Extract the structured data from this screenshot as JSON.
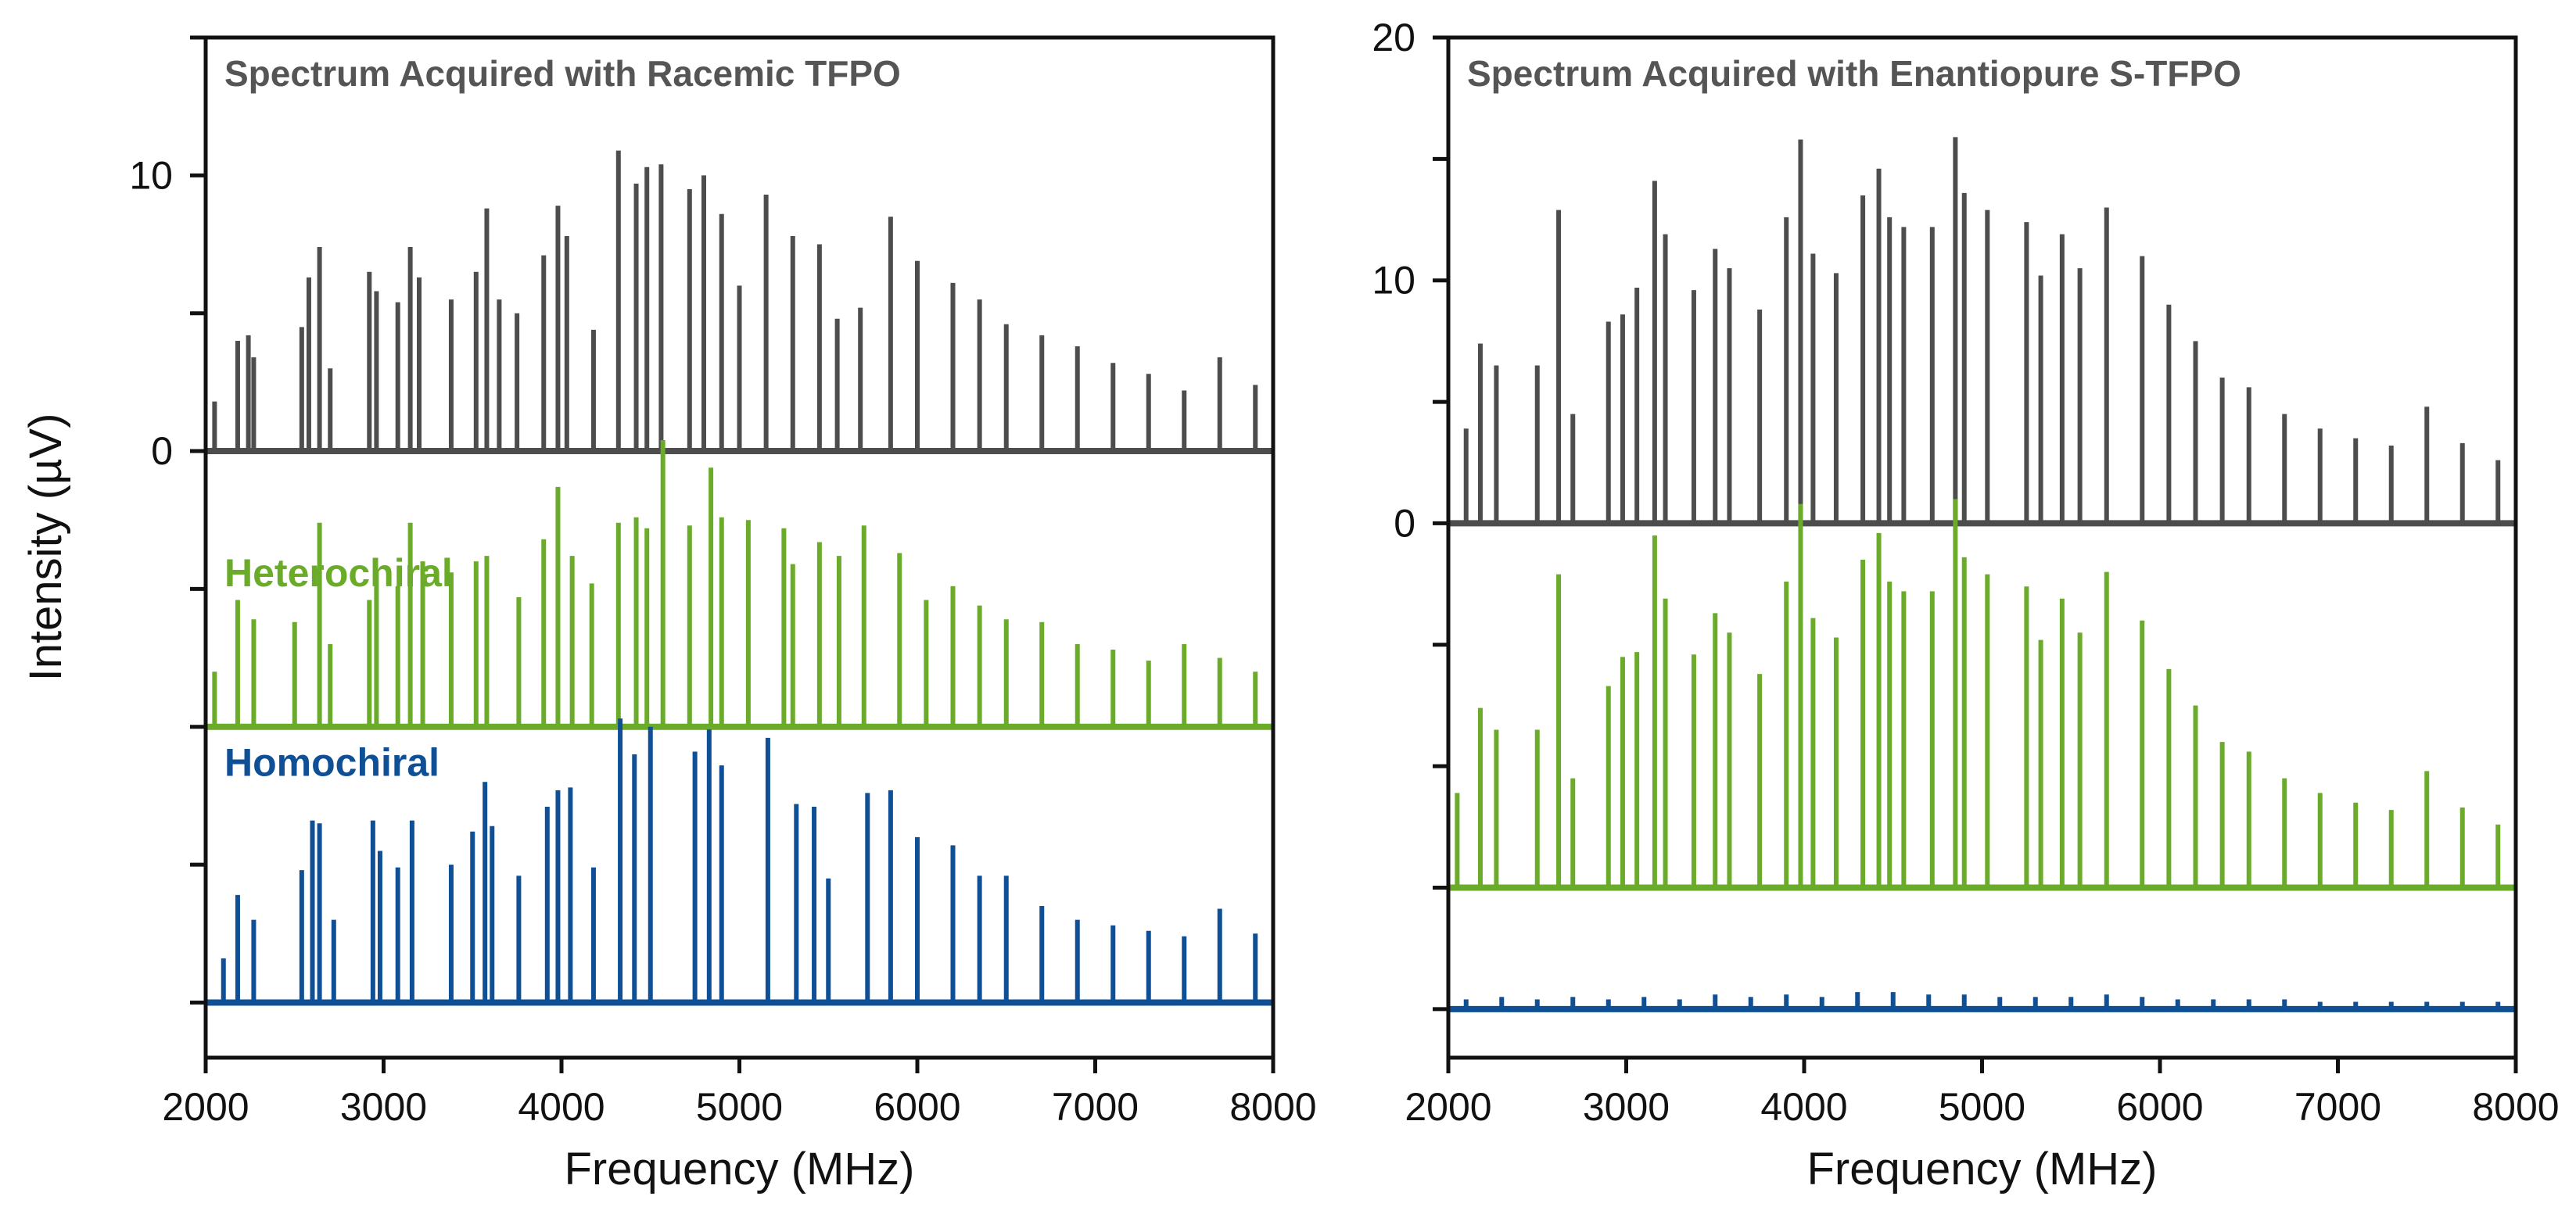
{
  "figure": {
    "y_axis_label": "Intensity (µV)",
    "x_axis_label": "Frequency (MHz)"
  },
  "colors": {
    "racemic": "#4d4d4d",
    "heterochiral": "#6aab2a",
    "homochiral": "#0f4f96",
    "axis": "#111111",
    "title": "#555555"
  },
  "chart_data": [
    {
      "type": "line",
      "title": "Spectrum Acquired with Racemic TFPO",
      "xlabel": "Frequency (MHz)",
      "ylabel": "Intensity (µV)",
      "xlim": [
        2000,
        8000
      ],
      "ylim": [
        -22,
        15
      ],
      "x_ticks": [
        2000,
        3000,
        4000,
        5000,
        6000,
        7000,
        8000
      ],
      "y_tick_labels": [
        {
          "value": 10,
          "label": "10"
        },
        {
          "value": 0,
          "label": "0"
        }
      ],
      "y_ticks": [
        15,
        10,
        5,
        0,
        -5,
        -10,
        -15,
        -20
      ],
      "series": [
        {
          "name": "Racemic TFPO",
          "color_key": "racemic",
          "offset": 0,
          "label": "",
          "peaks": [
            [
              2050,
              1.8
            ],
            [
              2180,
              4.0
            ],
            [
              2240,
              4.2
            ],
            [
              2270,
              3.4
            ],
            [
              2540,
              4.5
            ],
            [
              2580,
              6.3
            ],
            [
              2640,
              7.4
            ],
            [
              2700,
              3.0
            ],
            [
              2920,
              6.5
            ],
            [
              2960,
              5.8
            ],
            [
              3080,
              5.4
            ],
            [
              3150,
              7.4
            ],
            [
              3200,
              6.3
            ],
            [
              3380,
              5.5
            ],
            [
              3520,
              6.5
            ],
            [
              3580,
              8.8
            ],
            [
              3650,
              5.5
            ],
            [
              3750,
              5.0
            ],
            [
              3900,
              7.1
            ],
            [
              3980,
              8.9
            ],
            [
              4030,
              7.8
            ],
            [
              4180,
              4.4
            ],
            [
              4320,
              10.9
            ],
            [
              4420,
              9.7
            ],
            [
              4480,
              10.3
            ],
            [
              4560,
              10.4
            ],
            [
              4720,
              9.5
            ],
            [
              4800,
              10.0
            ],
            [
              4900,
              8.6
            ],
            [
              5000,
              6.0
            ],
            [
              5150,
              9.3
            ],
            [
              5300,
              7.8
            ],
            [
              5450,
              7.5
            ],
            [
              5550,
              4.8
            ],
            [
              5680,
              5.2
            ],
            [
              5850,
              8.5
            ],
            [
              6000,
              6.9
            ],
            [
              6200,
              6.1
            ],
            [
              6350,
              5.5
            ],
            [
              6500,
              4.6
            ],
            [
              6700,
              4.2
            ],
            [
              6900,
              3.8
            ],
            [
              7100,
              3.2
            ],
            [
              7300,
              2.8
            ],
            [
              7500,
              2.2
            ],
            [
              7700,
              3.4
            ],
            [
              7900,
              2.4
            ]
          ]
        },
        {
          "name": "Heterochiral",
          "color_key": "heterochiral",
          "offset": -10,
          "label": "Heterochiral",
          "peaks": [
            [
              2050,
              2.0
            ],
            [
              2180,
              4.6
            ],
            [
              2270,
              3.9
            ],
            [
              2500,
              3.8
            ],
            [
              2640,
              7.4
            ],
            [
              2700,
              3.0
            ],
            [
              2920,
              4.6
            ],
            [
              2960,
              5.6
            ],
            [
              3080,
              5.1
            ],
            [
              3150,
              7.4
            ],
            [
              3220,
              6.0
            ],
            [
              3380,
              5.6
            ],
            [
              3520,
              6.0
            ],
            [
              3580,
              6.2
            ],
            [
              3760,
              4.7
            ],
            [
              3900,
              6.8
            ],
            [
              3980,
              8.7
            ],
            [
              4060,
              6.2
            ],
            [
              4170,
              5.2
            ],
            [
              4320,
              7.4
            ],
            [
              4420,
              7.6
            ],
            [
              4480,
              7.2
            ],
            [
              4570,
              10.4
            ],
            [
              4720,
              7.3
            ],
            [
              4840,
              9.4
            ],
            [
              4900,
              7.6
            ],
            [
              5050,
              7.5
            ],
            [
              5250,
              7.2
            ],
            [
              5300,
              5.9
            ],
            [
              5450,
              6.7
            ],
            [
              5560,
              6.2
            ],
            [
              5700,
              7.3
            ],
            [
              5900,
              6.3
            ],
            [
              6050,
              4.6
            ],
            [
              6200,
              5.1
            ],
            [
              6350,
              4.4
            ],
            [
              6500,
              3.9
            ],
            [
              6700,
              3.8
            ],
            [
              6900,
              3.0
            ],
            [
              7100,
              2.8
            ],
            [
              7300,
              2.4
            ],
            [
              7500,
              3.0
            ],
            [
              7700,
              2.5
            ],
            [
              7900,
              2.0
            ]
          ]
        },
        {
          "name": "Homochiral",
          "color_key": "homochiral",
          "offset": -20,
          "label": "Homochiral",
          "peaks": [
            [
              2100,
              1.6
            ],
            [
              2180,
              3.9
            ],
            [
              2270,
              3.0
            ],
            [
              2540,
              4.8
            ],
            [
              2600,
              6.6
            ],
            [
              2640,
              6.5
            ],
            [
              2720,
              3.0
            ],
            [
              2940,
              6.6
            ],
            [
              2980,
              5.5
            ],
            [
              3080,
              4.9
            ],
            [
              3160,
              6.6
            ],
            [
              3380,
              5.0
            ],
            [
              3500,
              6.2
            ],
            [
              3570,
              8.0
            ],
            [
              3610,
              6.4
            ],
            [
              3760,
              4.6
            ],
            [
              3920,
              7.1
            ],
            [
              3980,
              7.7
            ],
            [
              4050,
              7.8
            ],
            [
              4180,
              4.9
            ],
            [
              4330,
              10.3
            ],
            [
              4410,
              9.0
            ],
            [
              4500,
              10.0
            ],
            [
              4750,
              9.1
            ],
            [
              4830,
              9.9
            ],
            [
              4900,
              8.6
            ],
            [
              5160,
              9.6
            ],
            [
              5320,
              7.2
            ],
            [
              5420,
              7.1
            ],
            [
              5500,
              4.5
            ],
            [
              5720,
              7.6
            ],
            [
              5850,
              7.7
            ],
            [
              6000,
              6.0
            ],
            [
              6200,
              5.7
            ],
            [
              6350,
              4.6
            ],
            [
              6500,
              4.6
            ],
            [
              6700,
              3.5
            ],
            [
              6900,
              3.0
            ],
            [
              7100,
              2.8
            ],
            [
              7300,
              2.6
            ],
            [
              7500,
              2.4
            ],
            [
              7700,
              3.4
            ],
            [
              7900,
              2.5
            ]
          ]
        }
      ]
    },
    {
      "type": "line",
      "title": "Spectrum Acquired with Enantiopure S-TFPO",
      "xlabel": "Frequency (MHz)",
      "ylabel": "Intensity (µV)",
      "xlim": [
        2000,
        8000
      ],
      "ylim": [
        -22,
        20
      ],
      "x_ticks": [
        2000,
        3000,
        4000,
        5000,
        6000,
        7000,
        8000
      ],
      "y_tick_labels": [
        {
          "value": 20,
          "label": "20"
        },
        {
          "value": 10,
          "label": "10"
        },
        {
          "value": 0,
          "label": "0"
        }
      ],
      "y_ticks": [
        20,
        15,
        10,
        5,
        0,
        -5,
        -10,
        -15,
        -20
      ],
      "series": [
        {
          "name": "Enantiopure S-TFPO",
          "color_key": "racemic",
          "offset": 0,
          "label": "",
          "peaks": [
            [
              2100,
              3.9
            ],
            [
              2180,
              7.4
            ],
            [
              2270,
              6.5
            ],
            [
              2500,
              6.5
            ],
            [
              2620,
              12.9
            ],
            [
              2700,
              4.5
            ],
            [
              2900,
              8.3
            ],
            [
              2980,
              8.6
            ],
            [
              3060,
              9.7
            ],
            [
              3160,
              14.1
            ],
            [
              3220,
              11.9
            ],
            [
              3380,
              9.6
            ],
            [
              3500,
              11.3
            ],
            [
              3580,
              10.5
            ],
            [
              3750,
              8.8
            ],
            [
              3900,
              12.6
            ],
            [
              3980,
              15.8
            ],
            [
              4050,
              11.1
            ],
            [
              4180,
              10.3
            ],
            [
              4330,
              13.5
            ],
            [
              4420,
              14.6
            ],
            [
              4480,
              12.6
            ],
            [
              4560,
              12.2
            ],
            [
              4720,
              12.2
            ],
            [
              4850,
              15.9
            ],
            [
              4900,
              13.6
            ],
            [
              5030,
              12.9
            ],
            [
              5250,
              12.4
            ],
            [
              5330,
              10.2
            ],
            [
              5450,
              11.9
            ],
            [
              5550,
              10.5
            ],
            [
              5700,
              13.0
            ],
            [
              5900,
              11.0
            ],
            [
              6050,
              9.0
            ],
            [
              6200,
              7.5
            ],
            [
              6350,
              6.0
            ],
            [
              6500,
              5.6
            ],
            [
              6700,
              4.5
            ],
            [
              6900,
              3.9
            ],
            [
              7100,
              3.5
            ],
            [
              7300,
              3.2
            ],
            [
              7500,
              4.8
            ],
            [
              7700,
              3.3
            ],
            [
              7900,
              2.6
            ]
          ]
        },
        {
          "name": "Heterochiral",
          "color_key": "heterochiral",
          "offset": -15,
          "label": "",
          "peaks": [
            [
              2050,
              3.9
            ],
            [
              2180,
              7.4
            ],
            [
              2270,
              6.5
            ],
            [
              2500,
              6.5
            ],
            [
              2620,
              12.9
            ],
            [
              2700,
              4.5
            ],
            [
              2900,
              8.3
            ],
            [
              2980,
              9.5
            ],
            [
              3060,
              9.7
            ],
            [
              3160,
              14.5
            ],
            [
              3220,
              11.9
            ],
            [
              3380,
              9.6
            ],
            [
              3500,
              11.3
            ],
            [
              3580,
              10.5
            ],
            [
              3750,
              8.8
            ],
            [
              3900,
              12.6
            ],
            [
              3980,
              15.8
            ],
            [
              4050,
              11.1
            ],
            [
              4180,
              10.3
            ],
            [
              4330,
              13.5
            ],
            [
              4420,
              14.6
            ],
            [
              4480,
              12.6
            ],
            [
              4560,
              12.2
            ],
            [
              4720,
              12.2
            ],
            [
              4850,
              16.0
            ],
            [
              4900,
              13.6
            ],
            [
              5030,
              12.9
            ],
            [
              5250,
              12.4
            ],
            [
              5330,
              10.2
            ],
            [
              5450,
              11.9
            ],
            [
              5550,
              10.5
            ],
            [
              5700,
              13.0
            ],
            [
              5900,
              11.0
            ],
            [
              6050,
              9.0
            ],
            [
              6200,
              7.5
            ],
            [
              6350,
              6.0
            ],
            [
              6500,
              5.6
            ],
            [
              6700,
              4.5
            ],
            [
              6900,
              3.9
            ],
            [
              7100,
              3.5
            ],
            [
              7300,
              3.2
            ],
            [
              7500,
              4.8
            ],
            [
              7700,
              3.3
            ],
            [
              7900,
              2.6
            ]
          ]
        },
        {
          "name": "Homochiral",
          "color_key": "homochiral",
          "offset": -20,
          "label": "",
          "peaks": [
            [
              2100,
              0.4
            ],
            [
              2300,
              0.5
            ],
            [
              2500,
              0.4
            ],
            [
              2700,
              0.5
            ],
            [
              2900,
              0.4
            ],
            [
              3100,
              0.5
            ],
            [
              3300,
              0.4
            ],
            [
              3500,
              0.6
            ],
            [
              3700,
              0.5
            ],
            [
              3900,
              0.6
            ],
            [
              4100,
              0.5
            ],
            [
              4300,
              0.7
            ],
            [
              4500,
              0.7
            ],
            [
              4700,
              0.6
            ],
            [
              4900,
              0.6
            ],
            [
              5100,
              0.5
            ],
            [
              5300,
              0.5
            ],
            [
              5500,
              0.5
            ],
            [
              5700,
              0.6
            ],
            [
              5900,
              0.5
            ],
            [
              6100,
              0.4
            ],
            [
              6300,
              0.4
            ],
            [
              6500,
              0.4
            ],
            [
              6700,
              0.4
            ],
            [
              6900,
              0.3
            ],
            [
              7100,
              0.3
            ],
            [
              7300,
              0.3
            ],
            [
              7500,
              0.3
            ],
            [
              7700,
              0.3
            ],
            [
              7900,
              0.3
            ]
          ]
        }
      ]
    }
  ]
}
